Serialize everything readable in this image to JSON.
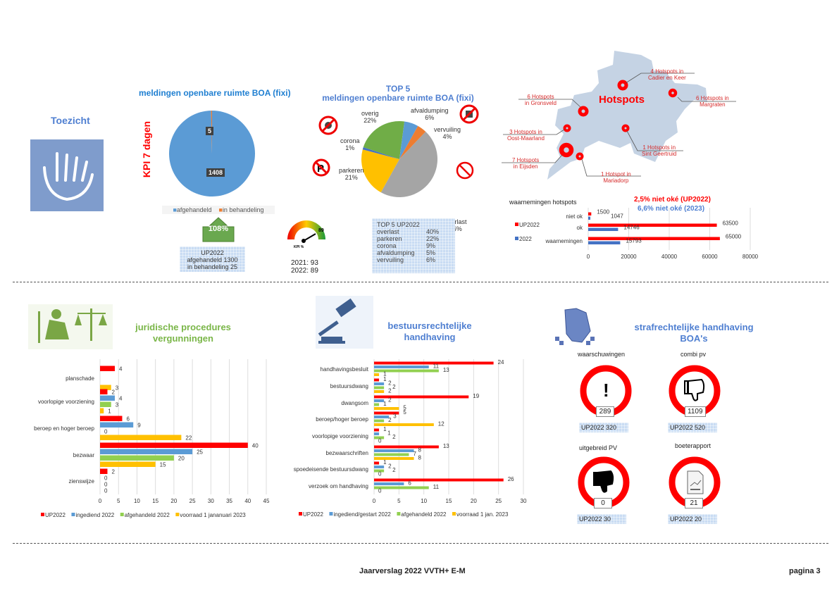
{
  "toezicht": {
    "title": "Toezicht"
  },
  "kpi": {
    "title": "meldingen openbare ruimte BOA (fixi)",
    "side_label": "KPI 7 dagen",
    "legend": [
      "afgehandeld",
      "in behandeling"
    ],
    "arrow_value": "108%",
    "up_box": [
      "UP2022",
      "afgehandeld 1300",
      "in behandeling 25"
    ],
    "gauge_label": "KPI %",
    "gauge_value": "89",
    "history": [
      "2021: 93",
      "2022: 89"
    ]
  },
  "top5": {
    "title": "TOP 5",
    "subtitle": "meldingen openbare ruimte BOA (fixi)",
    "up_title": "TOP 5 UP2022",
    "up_rows": [
      [
        "overlast",
        "40%"
      ],
      [
        "parkeren",
        "22%"
      ],
      [
        "corona",
        "9%"
      ],
      [
        "afvaldumping",
        "5%"
      ],
      [
        "vervuiling",
        "6%"
      ]
    ]
  },
  "hotspots": {
    "title": "Hotspots",
    "labels": [
      [
        "4 Hotspots  in",
        "Cadier en Keer"
      ],
      [
        "6 Hotspots  in",
        "Margraten"
      ],
      [
        "6 Hotspots",
        "in Gronsveld"
      ],
      [
        "3 Hotspots  in",
        "Oost-Maarland"
      ],
      [
        "1 Hotspots  in",
        "Sint Geertruid"
      ],
      [
        "7 Hotspots",
        "in Eijsden"
      ],
      [
        "1 Hotspot  in",
        "Mariadorp"
      ]
    ]
  },
  "waarnemingen": {
    "title": "waarnemingen hotspots",
    "note1": "2,5% niet oké (UP2022)",
    "note2": "6,6% niet oké (2023)"
  },
  "juridisch": {
    "title1": "juridische procedures",
    "title2": "vergunningen"
  },
  "bestuur": {
    "title1": "bestuursrechtelijke",
    "title2": "handhaving"
  },
  "straf": {
    "title1": "strafrechtelijke handhaving",
    "title2": "BOA's",
    "items": [
      {
        "label": "waarschuwingen",
        "value": "289",
        "up": "UP2022 320"
      },
      {
        "label": "combi pv",
        "value": "1109",
        "up": "UP2022 520"
      },
      {
        "label": "uitgebreid PV",
        "value": "0",
        "up": "UP2022 30"
      },
      {
        "label": "boeterapport",
        "value": "21",
        "up": "UP2022 20"
      }
    ]
  },
  "footer": {
    "center": "Jaarverslag 2022 VVTH+ E-M",
    "right": "pagina 3"
  },
  "chart_data": [
    {
      "type": "pie",
      "id": "kpi",
      "categories": [
        "afgehandeld",
        "in behandeling"
      ],
      "values": [
        1408,
        5
      ],
      "colors": [
        "#5b9bd5",
        "#ed7d31"
      ]
    },
    {
      "type": "pie",
      "id": "top5",
      "categories": [
        "overlast",
        "parkeren",
        "corona",
        "overig",
        "afvaldumping",
        "vervuiling"
      ],
      "values": [
        46,
        21,
        1,
        22,
        6,
        4
      ],
      "labels": [
        "46%",
        "21%",
        "1%",
        "22%",
        "6%",
        "4%"
      ],
      "colors": [
        "#a5a5a5",
        "#ffc000",
        "#4472c4",
        "#70ad47",
        "#5b9bd5",
        "#ed7d31"
      ]
    },
    {
      "type": "bar",
      "id": "waarnemingen",
      "orientation": "horizontal",
      "categories": [
        "niet ok",
        "ok",
        "waarnemingen"
      ],
      "series": [
        {
          "name": "UP2022",
          "values": [
            1500,
            63500,
            65000
          ],
          "color": "#ff0000"
        },
        {
          "name": "2022",
          "values": [
            1047,
            14746,
            15793
          ],
          "color": "#4472c4"
        }
      ],
      "xlim": [
        0,
        80000
      ],
      "ticks": [
        "0",
        "20000",
        "40000",
        "60000",
        "80000"
      ]
    },
    {
      "type": "bar",
      "id": "juridisch",
      "orientation": "horizontal",
      "categories": [
        "planschade",
        "voorlopige voorziening",
        "beroep en hoger beroep",
        "bezwaar",
        "zienswijze"
      ],
      "series": [
        {
          "name": "UP2022",
          "values": [
            4,
            2,
            6,
            40,
            2
          ],
          "color": "#ff0000"
        },
        {
          "name": "ingediend 2022",
          "values": [
            null,
            4,
            9,
            25,
            0
          ],
          "color": "#5b9bd5"
        },
        {
          "name": "afgehandeld 2022",
          "values": [
            null,
            3,
            0,
            20,
            0
          ],
          "color": "#92d050"
        },
        {
          "name": "voorraad 1 jananuari 2023",
          "values": [
            3,
            1,
            22,
            15,
            0
          ],
          "color": "#ffc000"
        }
      ],
      "xlim": [
        0,
        45
      ],
      "ticks": [
        "0",
        "5",
        "10",
        "15",
        "20",
        "25",
        "30",
        "35",
        "40",
        "45"
      ]
    },
    {
      "type": "bar",
      "id": "bestuur",
      "orientation": "horizontal",
      "categories": [
        "handhavingsbesluit",
        "bestuursdwang",
        "dwangsom",
        "beroep/hoger beroep",
        "voorlopige voorziening",
        "bezwaarschriften",
        "spoedeisende bestuursdwang",
        "verzoek om handhaving"
      ],
      "series": [
        {
          "name": "UP2022",
          "values": [
            24,
            1,
            19,
            5,
            1,
            13,
            1,
            26
          ],
          "color": "#ff0000"
        },
        {
          "name": "ingediend/gestart 2022",
          "values": [
            11,
            2,
            2,
            3,
            1,
            8,
            2,
            6
          ],
          "color": "#5b9bd5"
        },
        {
          "name": "afgehandeld 2022",
          "values": [
            13,
            2,
            1,
            2,
            2,
            7,
            2,
            11
          ],
          "color": "#92d050"
        },
        {
          "name": "voorraad 1 jan. 2023",
          "values": [
            1,
            2,
            5,
            12,
            0,
            8,
            0,
            0
          ],
          "color": "#ffc000"
        }
      ],
      "xlim": [
        0,
        30
      ],
      "ticks": [
        "0",
        "5",
        "10",
        "15",
        "20",
        "25",
        "30"
      ]
    }
  ]
}
